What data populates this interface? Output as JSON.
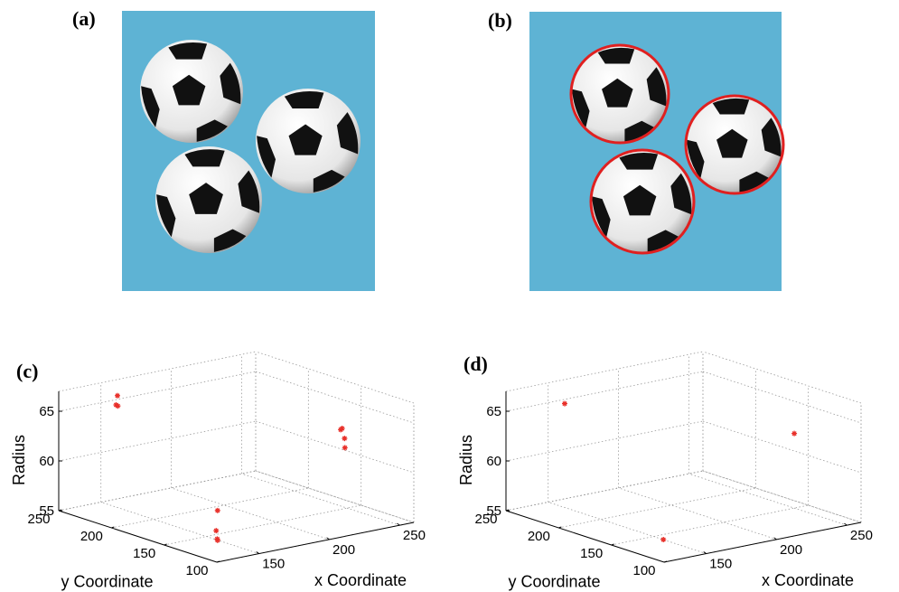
{
  "figure": {
    "panels": [
      {
        "label": "(a)"
      },
      {
        "label": "(b)"
      }
    ]
  },
  "chart_data": [
    {
      "type": "scatter3d",
      "panel_label": "(c)",
      "xlabel": "x Coordinate",
      "ylabel": "y Coordinate",
      "zlabel": "Radius",
      "xlim": [
        120,
        260
      ],
      "ylim": [
        100,
        250
      ],
      "zlim": [
        55,
        67
      ],
      "xticks": [
        150,
        200,
        250
      ],
      "yticks": [
        100,
        150,
        200,
        250
      ],
      "zticks": [
        55,
        60,
        65
      ],
      "grid": true,
      "color": "#e8302a",
      "x": [
        152,
        151,
        153,
        248,
        249,
        250,
        247,
        131,
        130,
        130,
        131
      ],
      "y": [
        237,
        237,
        238,
        152,
        151,
        152,
        152,
        114,
        114,
        113,
        114
      ],
      "z": [
        66.1,
        65.2,
        65.0,
        63.0,
        62.0,
        61.0,
        62.9,
        59.4,
        57.4,
        56.6,
        56.4
      ]
    },
    {
      "type": "scatter3d",
      "panel_label": "(d)",
      "xlabel": "x Coordinate",
      "ylabel": "y Coordinate",
      "zlabel": "Radius",
      "xlim": [
        120,
        260
      ],
      "ylim": [
        100,
        250
      ],
      "zlim": [
        55,
        67
      ],
      "xticks": [
        150,
        200,
        250
      ],
      "yticks": [
        100,
        150,
        200,
        250
      ],
      "zticks": [
        55,
        60,
        65
      ],
      "grid": true,
      "color": "#e8302a",
      "x": [
        152,
        250,
        130
      ],
      "y": [
        237,
        150,
        114
      ],
      "z": [
        65.3,
        62.5,
        56.5
      ]
    }
  ]
}
